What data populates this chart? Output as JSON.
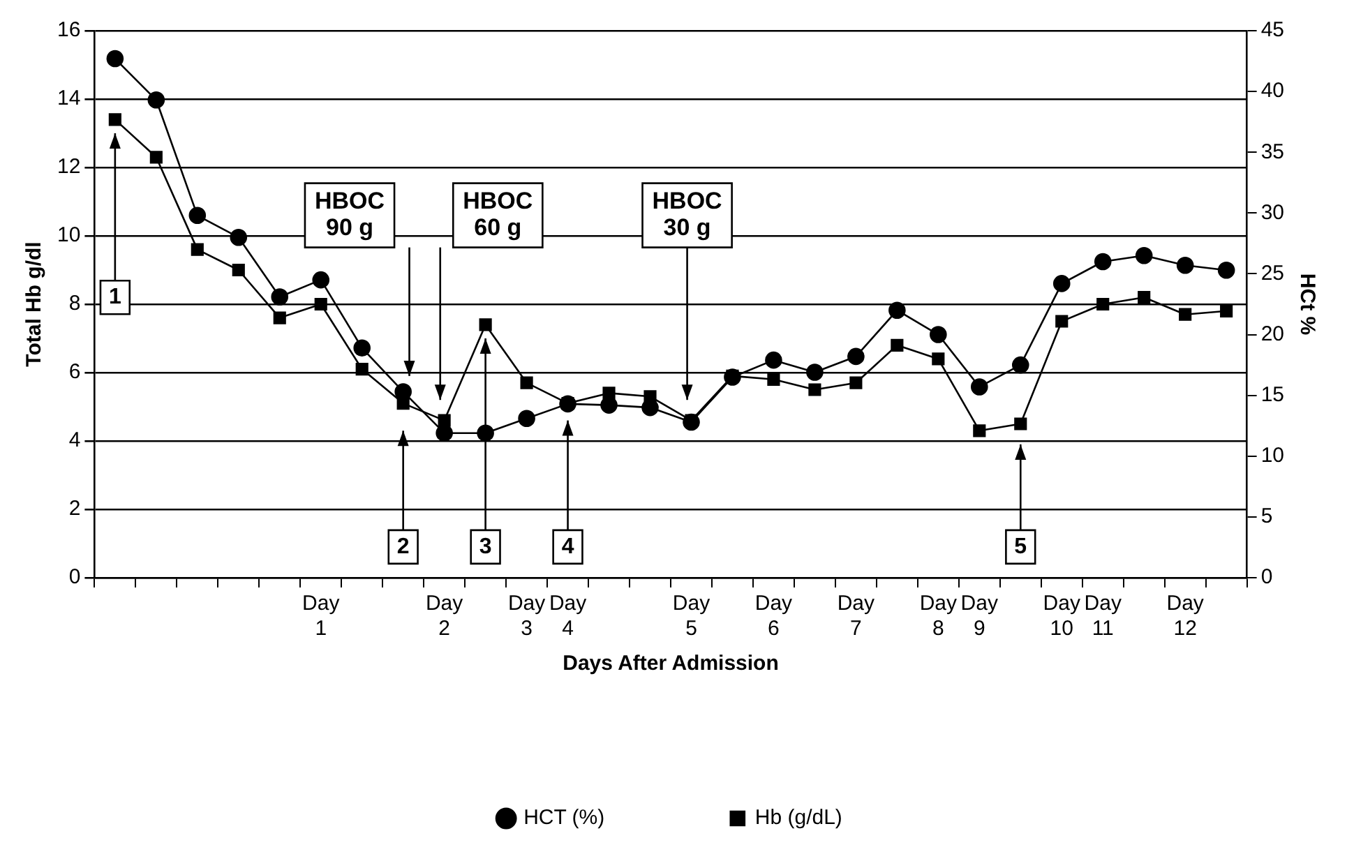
{
  "chart_data": {
    "type": "line",
    "xlabel": "Days After Admission",
    "ylabel": "Total Hb g/dl",
    "y2label": "HCt %",
    "categories": [
      null,
      null,
      null,
      null,
      null,
      "Day 1",
      null,
      null,
      "Day 2",
      null,
      "Day 3",
      "Day 4",
      null,
      null,
      "Day 5",
      null,
      "Day 6",
      null,
      "Day 7",
      null,
      "Day 8",
      "Day 9",
      null,
      "Day 10",
      "Day 11",
      null,
      "Day 12",
      null
    ],
    "series": [
      {
        "name": "HCT (%)",
        "color": "#000000",
        "axis": "y2",
        "marker": "circle",
        "values": [
          42.7,
          39.3,
          29.8,
          28.0,
          23.1,
          24.5,
          18.9,
          15.3,
          11.9,
          11.9,
          13.1,
          14.3,
          14.2,
          14.0,
          12.8,
          16.5,
          17.9,
          16.9,
          18.2,
          22.0,
          20.0,
          15.7,
          17.5,
          24.2,
          26.0,
          26.5,
          25.7,
          25.3
        ]
      },
      {
        "name": "Hb (g/dL)",
        "color": "#000000",
        "marker": "square",
        "values": [
          13.4,
          12.3,
          9.6,
          9.0,
          7.6,
          8.0,
          6.1,
          5.1,
          4.6,
          7.4,
          5.7,
          5.1,
          5.4,
          5.3,
          4.6,
          5.9,
          5.8,
          5.5,
          5.7,
          6.8,
          6.4,
          4.3,
          4.5,
          7.5,
          8.0,
          8.2,
          7.7,
          7.8
        ]
      }
    ],
    "ylim": [
      0,
      16
    ],
    "yticks": [
      0,
      2,
      4,
      6,
      8,
      10,
      12,
      14,
      16
    ],
    "y2lim": [
      0,
      45
    ],
    "y2ticks": [
      0,
      5,
      10,
      15,
      20,
      25,
      30,
      35,
      40,
      45
    ],
    "grid": "y",
    "legend": "bottom",
    "line_style": "solid",
    "annotations": [
      "1",
      "2",
      {
        "text": "3",
        "y": 7.0
      },
      "4",
      "5",
      "HBOC 90 g",
      "HBOC 60 g",
      "HBOC 30 g"
    ]
  }
}
